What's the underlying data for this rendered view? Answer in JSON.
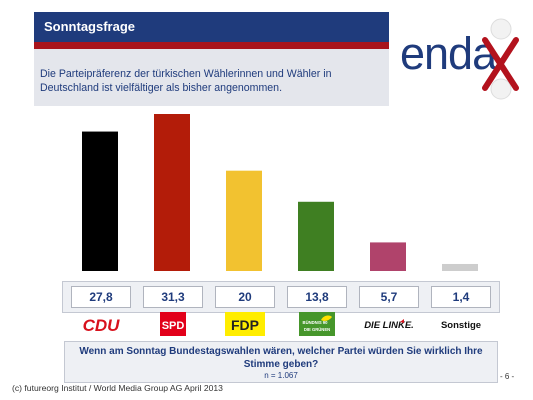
{
  "header": {
    "title": "Sonntagsfrage"
  },
  "subtitle": "Die Parteipräferenz der türkischen Wählerinnen und Wähler in Deutschland ist vielfältiger als bisher angenommen.",
  "logo": {
    "text": "enda",
    "x_letter": "X"
  },
  "chart_data": {
    "type": "bar",
    "categories": [
      "CDU",
      "SPD",
      "FDP",
      "Bündnis 90 / Die Grünen",
      "Die Linke",
      "Sonstige"
    ],
    "values": [
      27.8,
      31.3,
      20,
      13.8,
      5.7,
      1.4
    ],
    "value_labels": [
      "27,8",
      "31,3",
      "20",
      "13,8",
      "5,7",
      "1,4"
    ],
    "colors": [
      "#000000",
      "#b31c09",
      "#f2c230",
      "#3f7f22",
      "#b0436b",
      "#cdcdcd"
    ],
    "category_labels": {
      "cdu": "CDU",
      "spd": "SPD",
      "fdp": "FDP",
      "gruene_line1": "BÜNDNIS 90",
      "gruene_line2": "DIE GRÜNEN",
      "linke": "DIE LINKE.",
      "sonstige": "Sonstige"
    }
  },
  "question": {
    "text": "Wenn am Sonntag Bundestagswahlen wären, welcher Partei würden Sie wirklich Ihre Stimme geben?",
    "sample": "n = 1.067"
  },
  "footer": "(c) futureorg Institut / World Media Group AG April 2013",
  "page_number": "- 6 -"
}
